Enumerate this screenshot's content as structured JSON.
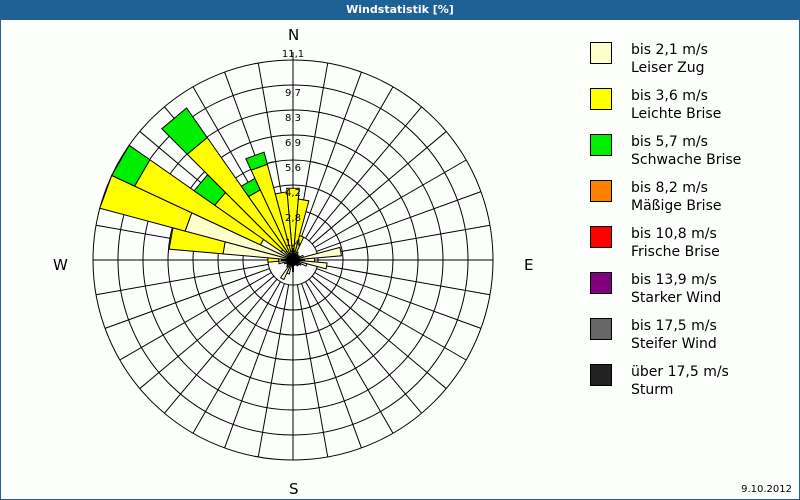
{
  "title": "Windstatistik [%]",
  "date": "9.10.2012",
  "directions": {
    "n": "N",
    "e": "E",
    "s": "S",
    "w": "W"
  },
  "legend": [
    {
      "line1": "bis 2,1 m/s",
      "line2": "Leiser Zug",
      "color": "#ffffcc"
    },
    {
      "line1": "bis 3,6 m/s",
      "line2": "Leichte Brise",
      "color": "#ffff00"
    },
    {
      "line1": "bis 5,7 m/s",
      "line2": "Schwache Brise",
      "color": "#00ee00"
    },
    {
      "line1": "bis 8,2 m/s",
      "line2": "Mäßige Brise",
      "color": "#ff8000"
    },
    {
      "line1": "bis 10,8 m/s",
      "line2": "Frische Brise",
      "color": "#ff0000"
    },
    {
      "line1": "bis 13,9 m/s",
      "line2": "Starker Wind",
      "color": "#800080"
    },
    {
      "line1": "bis 17,5 m/s",
      "line2": "Steifer Wind",
      "color": "#666666"
    },
    {
      "line1": "über 17,5 m/s",
      "line2": "Sturm",
      "color": "#222222"
    }
  ],
  "chart_data": {
    "type": "wind-rose",
    "title": "Windstatistik [%]",
    "ring_labels": [
      "1,4",
      "2,8",
      "4,2",
      "5,6",
      "6,9",
      "8,3",
      "9,7",
      "11,1"
    ],
    "rmax": 11.1,
    "sector_width_deg": 10,
    "series_names": [
      "bis 2,1 m/s",
      "bis 3,6 m/s",
      "bis 5,7 m/s",
      "bis 8,2 m/s",
      "bis 10,8 m/s",
      "bis 13,9 m/s",
      "bis 17,5 m/s",
      "über 17,5 m/s"
    ],
    "sectors": [
      {
        "dir": 0,
        "values": [
          0.6,
          3.4,
          0,
          0,
          0,
          0,
          0,
          0
        ]
      },
      {
        "dir": 10,
        "values": [
          0.5,
          2.9,
          0,
          0,
          0,
          0,
          0,
          0
        ]
      },
      {
        "dir": 20,
        "values": [
          0.4,
          1.0,
          0,
          0,
          0,
          0,
          0,
          0
        ]
      },
      {
        "dir": 30,
        "values": [
          0.5,
          0,
          0,
          0,
          0,
          0,
          0,
          0
        ]
      },
      {
        "dir": 40,
        "values": [
          0.4,
          0,
          0,
          0,
          0,
          0,
          0,
          0
        ]
      },
      {
        "dir": 50,
        "values": [
          0.3,
          0,
          0,
          0,
          0,
          0,
          0,
          0
        ]
      },
      {
        "dir": 60,
        "values": [
          0.4,
          0,
          0,
          0,
          0,
          0,
          0,
          0
        ]
      },
      {
        "dir": 70,
        "values": [
          0.6,
          0,
          0,
          0,
          0,
          0,
          0,
          0
        ]
      },
      {
        "dir": 80,
        "values": [
          2.7,
          0,
          0,
          0,
          0,
          0,
          0,
          0
        ]
      },
      {
        "dir": 90,
        "values": [
          1.2,
          0,
          0,
          0,
          0,
          0,
          0,
          0
        ]
      },
      {
        "dir": 100,
        "values": [
          1.9,
          0,
          0,
          0,
          0,
          0,
          0,
          0
        ]
      },
      {
        "dir": 110,
        "values": [
          0.8,
          0,
          0,
          0,
          0,
          0,
          0,
          0
        ]
      },
      {
        "dir": 120,
        "values": [
          0.5,
          0,
          0,
          0,
          0,
          0,
          0,
          0
        ]
      },
      {
        "dir": 130,
        "values": [
          0.4,
          0,
          0,
          0,
          0,
          0,
          0,
          0
        ]
      },
      {
        "dir": 140,
        "values": [
          0.4,
          0,
          0,
          0,
          0,
          0,
          0,
          0
        ]
      },
      {
        "dir": 150,
        "values": [
          0.3,
          0,
          0,
          0,
          0,
          0,
          0,
          0
        ]
      },
      {
        "dir": 160,
        "values": [
          0.3,
          0,
          0,
          0,
          0,
          0,
          0,
          0
        ]
      },
      {
        "dir": 170,
        "values": [
          0.3,
          0,
          0,
          0,
          0,
          0,
          0,
          0
        ]
      },
      {
        "dir": 180,
        "values": [
          0.3,
          0,
          0,
          0,
          0,
          0,
          0,
          0
        ]
      },
      {
        "dir": 190,
        "values": [
          0.3,
          0,
          0,
          0,
          0,
          0,
          0,
          0
        ]
      },
      {
        "dir": 200,
        "values": [
          0.8,
          0,
          0,
          0,
          0,
          0,
          0,
          0
        ]
      },
      {
        "dir": 210,
        "values": [
          1.2,
          0,
          0,
          0,
          0,
          0,
          0,
          0
        ]
      },
      {
        "dir": 220,
        "values": [
          0.5,
          0,
          0,
          0,
          0,
          0,
          0,
          0
        ]
      },
      {
        "dir": 230,
        "values": [
          0.4,
          0,
          0,
          0,
          0,
          0,
          0,
          0
        ]
      },
      {
        "dir": 240,
        "values": [
          0.4,
          0,
          0,
          0,
          0,
          0,
          0,
          0
        ]
      },
      {
        "dir": 250,
        "values": [
          0.5,
          0,
          0,
          0,
          0,
          0,
          0,
          0
        ]
      },
      {
        "dir": 260,
        "values": [
          0.8,
          0,
          0,
          0,
          0,
          0,
          0,
          0
        ]
      },
      {
        "dir": 270,
        "values": [
          0.8,
          0.6,
          0,
          0,
          0,
          0,
          0,
          0
        ]
      },
      {
        "dir": 280,
        "values": [
          3.9,
          3.0,
          0,
          0,
          0,
          0,
          0,
          0
        ]
      },
      {
        "dir": 290,
        "values": [
          6.2,
          4.9,
          0,
          0,
          0,
          0,
          0,
          0
        ]
      },
      {
        "dir": 300,
        "values": [
          2.0,
          7.7,
          1.4,
          0,
          0,
          0,
          0,
          0
        ]
      },
      {
        "dir": 310,
        "values": [
          0.8,
          4.5,
          1.4,
          0,
          0,
          0,
          0,
          0
        ]
      },
      {
        "dir": 320,
        "values": [
          0.6,
          7.7,
          2.0,
          0,
          0,
          0,
          0,
          0
        ]
      },
      {
        "dir": 330,
        "values": [
          0.4,
          3.9,
          0.7,
          0,
          0,
          0,
          0,
          0
        ]
      },
      {
        "dir": 340,
        "values": [
          0.4,
          5.1,
          0.7,
          0,
          0,
          0,
          0,
          0
        ]
      },
      {
        "dir": 350,
        "values": [
          0.5,
          3.3,
          0,
          0,
          0,
          0,
          0,
          0
        ]
      }
    ],
    "grid": true,
    "legend_position": "right"
  }
}
